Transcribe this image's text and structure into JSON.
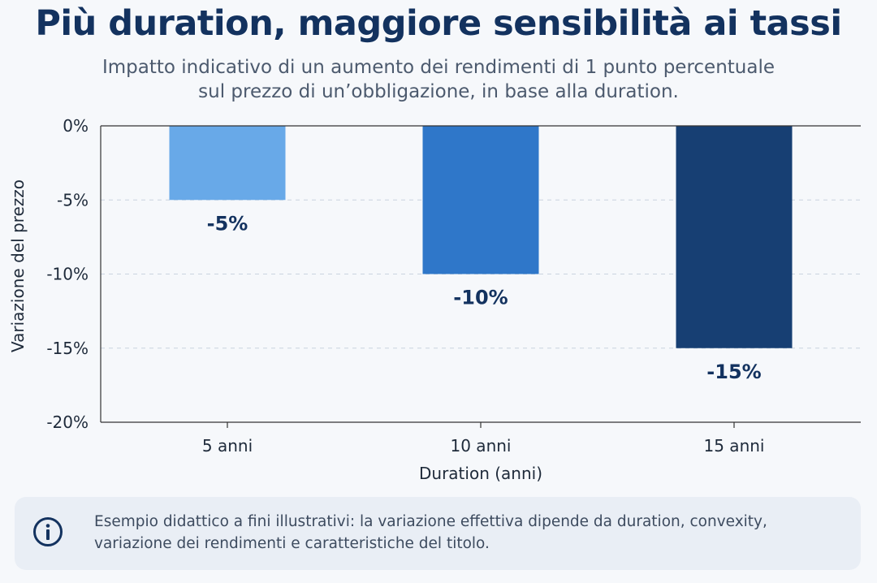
{
  "title": "Più duration, maggiore sensibilità ai tassi",
  "subtitle_line1": "Impatto indicativo di un aumento dei rendimenti di 1 punto percentuale",
  "subtitle_line2": "sul prezzo di un’obbligazione, in base alla duration.",
  "note": {
    "icon": "info-icon",
    "line1": "Esempio didattico a fini illustrativi: la variazione effettiva dipende da duration, convexity,",
    "line2": "variazione dei rendimenti e caratteristiche del titolo."
  },
  "chart_data": {
    "type": "bar",
    "categories": [
      "5 anni",
      "10 anni",
      "15 anni"
    ],
    "values": [
      -5,
      -10,
      -15
    ],
    "data_labels": [
      "-5%",
      "-10%",
      "-15%"
    ],
    "colors": [
      "#68a9e8",
      "#2f77c9",
      "#173f73"
    ],
    "xlabel": "Duration (anni)",
    "ylabel": "Variazione del prezzo",
    "ylim": [
      -20,
      0
    ],
    "yticks": [
      0,
      -5,
      -10,
      -15,
      -20
    ],
    "ytick_labels": [
      "0%",
      "-5%",
      "-10%",
      "-15%",
      "-20%"
    ],
    "grid": true,
    "legend": "none"
  }
}
